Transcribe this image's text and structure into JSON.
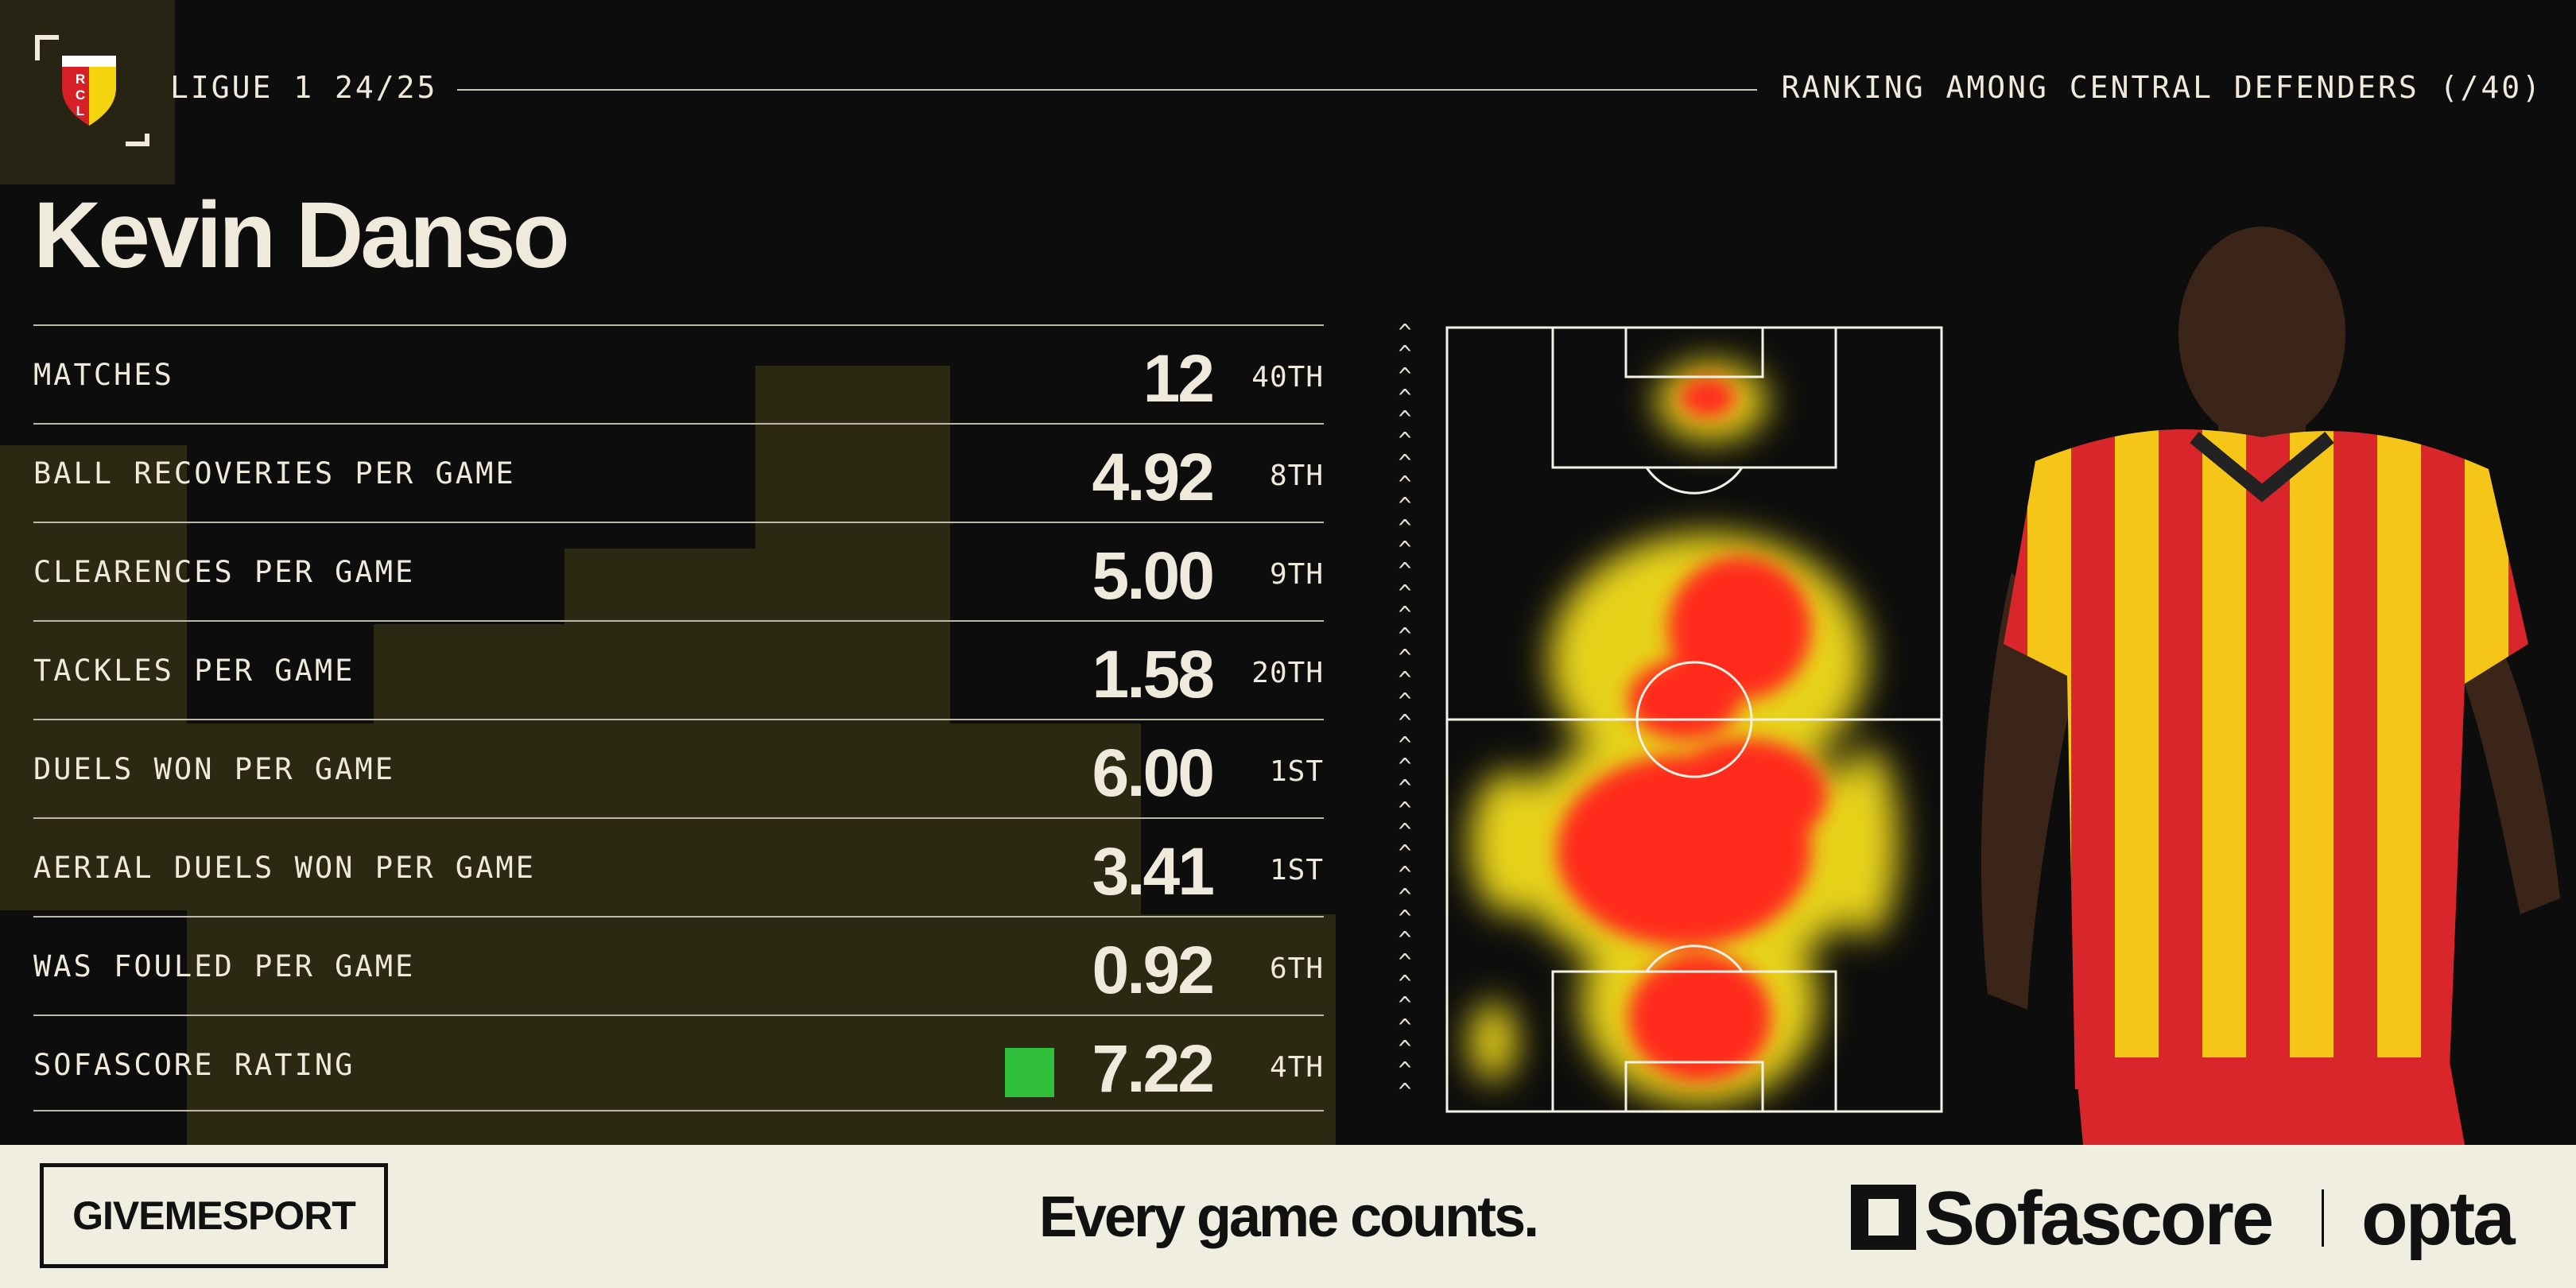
{
  "header": {
    "competition": "LIGUE 1 24/25",
    "ranking_context": "RANKING AMONG CENTRAL DEFENDERS (/40)",
    "club_logo": "RC Lens crest",
    "club_logo_text": "RCL"
  },
  "player": {
    "name": "Kevin Danso"
  },
  "stats": [
    {
      "label": "MATCHES",
      "value": "12",
      "rank": "40TH"
    },
    {
      "label": "BALL RECOVERIES PER GAME",
      "value": "4.92",
      "rank": "8TH"
    },
    {
      "label": "CLEARENCES PER GAME",
      "value": "5.00",
      "rank": "9TH"
    },
    {
      "label": "TACKLES PER GAME",
      "value": "1.58",
      "rank": "20TH"
    },
    {
      "label": "DUELS WON PER GAME",
      "value": "6.00",
      "rank": "1ST"
    },
    {
      "label": "AERIAL DUELS WON PER GAME",
      "value": "3.41",
      "rank": "1ST"
    },
    {
      "label": "WAS FOULED PER GAME",
      "value": "0.92",
      "rank": "6TH"
    },
    {
      "label": "SOFASCORE RATING",
      "value": "7.22",
      "rank": "4TH",
      "rating_color": "#2fbf3a"
    }
  ],
  "direction_arrow": "^",
  "footer": {
    "brand": "GIVEMESPORT",
    "tagline": "Every game counts.",
    "partner1": "Sofascore",
    "partner2": "opta"
  },
  "colors": {
    "background": "#0d0d0d",
    "accent_olive": "#2f2c12",
    "footer": "#efeee0",
    "heat_red": "#ff2a1a",
    "heat_yellow": "#ffe81a"
  }
}
